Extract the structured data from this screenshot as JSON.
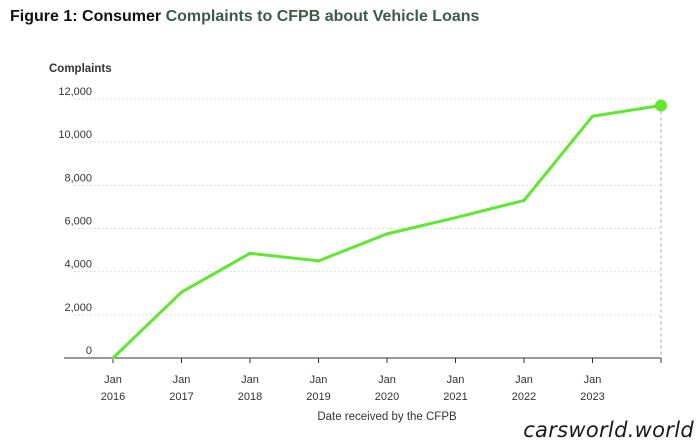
{
  "figure": {
    "title_prefix": "Figure 1: Consumer",
    "title_rest": "Complaints to CFPB about Vehicle Loans"
  },
  "watermark": "carsworld.world",
  "chart_data": {
    "type": "line",
    "title": "Figure 1: Consumer Complaints to CFPB about Vehicle Loans",
    "ylabel": "Complaints",
    "xlabel": "Date received by the CFPB",
    "ylim": [
      0,
      12000
    ],
    "yticks": [
      0,
      2000,
      4000,
      6000,
      8000,
      10000,
      12000
    ],
    "ytick_labels": [
      "0",
      "2,000",
      "4,000",
      "6,000",
      "8,000",
      "10,000",
      "12,000"
    ],
    "xlim": [
      "2016-01",
      "2024-01"
    ],
    "xticks": [
      {
        "date": "2016-01",
        "month": "Jan",
        "year": "2016"
      },
      {
        "date": "2017-01",
        "month": "Jan",
        "year": "2017"
      },
      {
        "date": "2018-01",
        "month": "Jan",
        "year": "2018"
      },
      {
        "date": "2019-01",
        "month": "Jan",
        "year": "2019"
      },
      {
        "date": "2020-01",
        "month": "Jan",
        "year": "2020"
      },
      {
        "date": "2021-01",
        "month": "Jan",
        "year": "2021"
      },
      {
        "date": "2022-01",
        "month": "Jan",
        "year": "2022"
      },
      {
        "date": "2023-01",
        "month": "Jan",
        "year": "2023"
      },
      {
        "date": "2024-01",
        "month": "",
        "year": ""
      }
    ],
    "grid": "horizontal dotted",
    "series": [
      {
        "color": "#5ee82f",
        "points": [
          {
            "x": "2016-01",
            "y": 0
          },
          {
            "x": "2017-01",
            "y": 3050
          },
          {
            "x": "2018-01",
            "y": 4850
          },
          {
            "x": "2019-01",
            "y": 4500
          },
          {
            "x": "2020-01",
            "y": 5750
          },
          {
            "x": "2021-01",
            "y": 6500
          },
          {
            "x": "2022-01",
            "y": 7300
          },
          {
            "x": "2023-01",
            "y": 11200
          },
          {
            "x": "2024-01",
            "y": 11700
          }
        ],
        "end_marker": true
      }
    ]
  }
}
